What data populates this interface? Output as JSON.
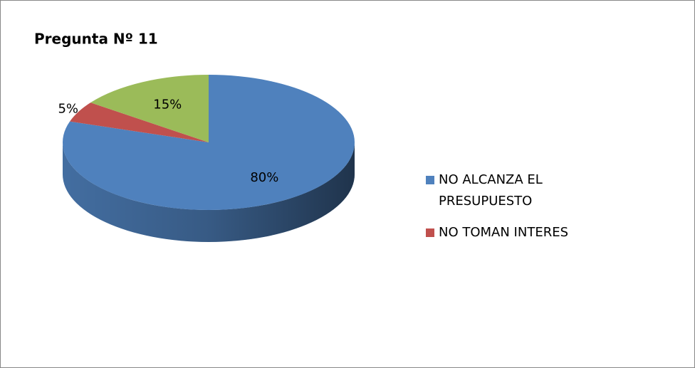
{
  "chart_data": {
    "type": "pie",
    "title": "Pregunta Nº 11",
    "categories": [
      "NO ALCANZA EL PRESUPUESTO",
      "NO TOMAN INTERES",
      null
    ],
    "values": [
      80,
      5,
      15
    ],
    "value_labels": [
      "80%",
      "5%",
      "15%"
    ],
    "colors": [
      "#4f81bd",
      "#c0504d",
      "#9bbb59"
    ],
    "legend": "right"
  }
}
